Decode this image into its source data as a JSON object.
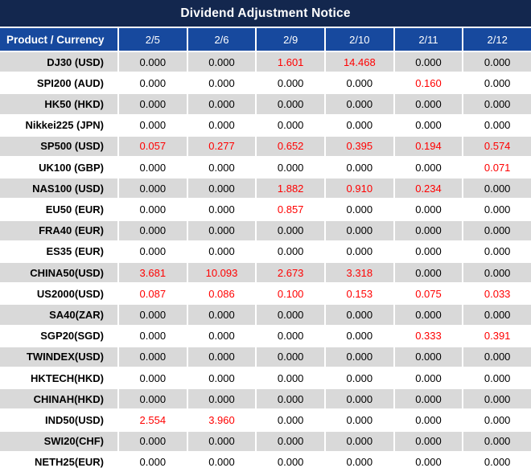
{
  "title_bar": {
    "title": "Dividend Adjustment Notice"
  },
  "colors": {
    "title_bar_bg": "#13274e",
    "header_bg": "#17499e",
    "header_text": "#ffffff",
    "row_alt_bg": "#d9d9d9",
    "row_bg": "#ffffff",
    "value_text": "#000000",
    "nonzero_value_text": "#ff0000",
    "gridline": "#ffffff"
  },
  "chart_data": {
    "type": "table",
    "title": "Dividend Adjustment Notice",
    "columns": [
      "Product / Currency",
      "2/5",
      "2/6",
      "2/9",
      "2/10",
      "2/11",
      "2/12"
    ],
    "highlight_rule": "non-zero dividend values rendered in red",
    "rows": [
      {
        "product": "DJ30 (USD)",
        "values": [
          "0.000",
          "0.000",
          "1.601",
          "14.468",
          "0.000",
          "0.000"
        ]
      },
      {
        "product": "SPI200 (AUD)",
        "values": [
          "0.000",
          "0.000",
          "0.000",
          "0.000",
          "0.160",
          "0.000"
        ]
      },
      {
        "product": "HK50 (HKD)",
        "values": [
          "0.000",
          "0.000",
          "0.000",
          "0.000",
          "0.000",
          "0.000"
        ]
      },
      {
        "product": "Nikkei225 (JPN)",
        "values": [
          "0.000",
          "0.000",
          "0.000",
          "0.000",
          "0.000",
          "0.000"
        ]
      },
      {
        "product": "SP500 (USD)",
        "values": [
          "0.057",
          "0.277",
          "0.652",
          "0.395",
          "0.194",
          "0.574"
        ]
      },
      {
        "product": "UK100 (GBP)",
        "values": [
          "0.000",
          "0.000",
          "0.000",
          "0.000",
          "0.000",
          "0.071"
        ]
      },
      {
        "product": "NAS100 (USD)",
        "values": [
          "0.000",
          "0.000",
          "1.882",
          "0.910",
          "0.234",
          "0.000"
        ]
      },
      {
        "product": "EU50 (EUR)",
        "values": [
          "0.000",
          "0.000",
          "0.857",
          "0.000",
          "0.000",
          "0.000"
        ]
      },
      {
        "product": "FRA40 (EUR)",
        "values": [
          "0.000",
          "0.000",
          "0.000",
          "0.000",
          "0.000",
          "0.000"
        ]
      },
      {
        "product": "ES35 (EUR)",
        "values": [
          "0.000",
          "0.000",
          "0.000",
          "0.000",
          "0.000",
          "0.000"
        ]
      },
      {
        "product": "CHINA50(USD)",
        "values": [
          "3.681",
          "10.093",
          "2.673",
          "3.318",
          "0.000",
          "0.000"
        ]
      },
      {
        "product": "US2000(USD)",
        "values": [
          "0.087",
          "0.086",
          "0.100",
          "0.153",
          "0.075",
          "0.033"
        ]
      },
      {
        "product": "SA40(ZAR)",
        "values": [
          "0.000",
          "0.000",
          "0.000",
          "0.000",
          "0.000",
          "0.000"
        ]
      },
      {
        "product": "SGP20(SGD)",
        "values": [
          "0.000",
          "0.000",
          "0.000",
          "0.000",
          "0.333",
          "0.391"
        ]
      },
      {
        "product": "TWINDEX(USD)",
        "values": [
          "0.000",
          "0.000",
          "0.000",
          "0.000",
          "0.000",
          "0.000"
        ]
      },
      {
        "product": "HKTECH(HKD)",
        "values": [
          "0.000",
          "0.000",
          "0.000",
          "0.000",
          "0.000",
          "0.000"
        ]
      },
      {
        "product": "CHINAH(HKD)",
        "values": [
          "0.000",
          "0.000",
          "0.000",
          "0.000",
          "0.000",
          "0.000"
        ]
      },
      {
        "product": "IND50(USD)",
        "values": [
          "2.554",
          "3.960",
          "0.000",
          "0.000",
          "0.000",
          "0.000"
        ]
      },
      {
        "product": "SWI20(CHF)",
        "values": [
          "0.000",
          "0.000",
          "0.000",
          "0.000",
          "0.000",
          "0.000"
        ]
      },
      {
        "product": "NETH25(EUR)",
        "values": [
          "0.000",
          "0.000",
          "0.000",
          "0.000",
          "0.000",
          "0.000"
        ]
      }
    ]
  }
}
